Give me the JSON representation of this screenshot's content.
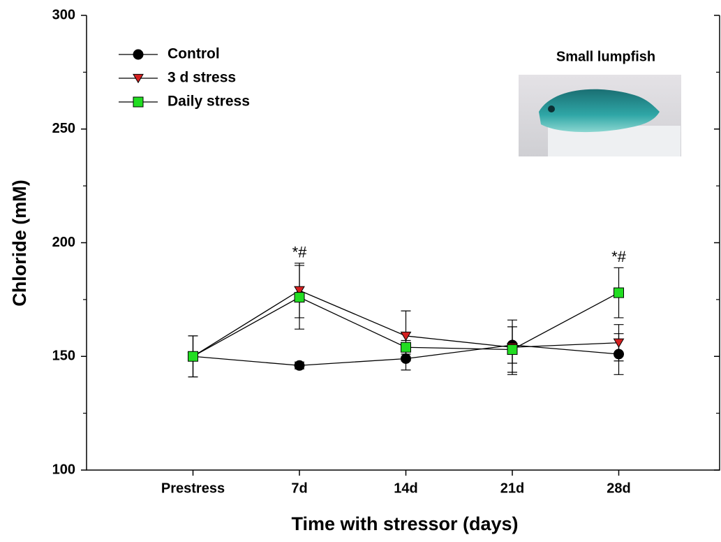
{
  "chart_data": {
    "type": "line",
    "x_label": "Time with stressor (days)",
    "y_label": "Chloride (mM)",
    "categories": [
      "Prestress",
      "7d",
      "14d",
      "21d",
      "28d"
    ],
    "series": [
      {
        "name": "Control",
        "color": "#000000",
        "marker": "circle",
        "values": [
          150,
          146,
          149,
          155,
          151
        ],
        "errors": [
          9,
          1.5,
          5,
          8,
          9
        ]
      },
      {
        "name": "3 d stress",
        "color": "#d42020",
        "marker": "triangle-down",
        "values": [
          150,
          179,
          159,
          154,
          156
        ],
        "errors": [
          9,
          12,
          11,
          12,
          8
        ]
      },
      {
        "name": "Daily stress",
        "color": "#22dd22",
        "marker": "square",
        "values": [
          150,
          176,
          154,
          153,
          178
        ],
        "errors": [
          9,
          14,
          3,
          10,
          11
        ]
      }
    ],
    "ylim": [
      100,
      300
    ],
    "yticks": [
      100,
      150,
      200,
      250,
      300
    ],
    "yminorticks": [
      125,
      175,
      225,
      275
    ],
    "legend": "upper left",
    "annotations": [
      {
        "text": "*#",
        "x": "7d"
      },
      {
        "text": "*#",
        "x": "28d"
      }
    ],
    "inset_title": "Small lumpfish"
  }
}
